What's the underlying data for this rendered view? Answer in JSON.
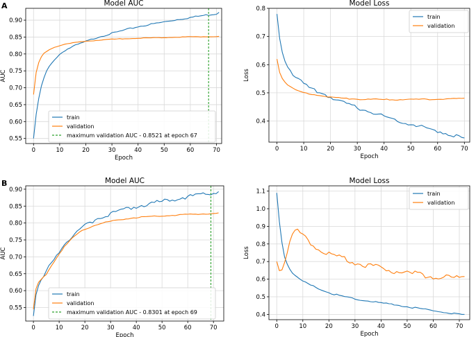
{
  "panel_labels": [
    "A",
    "B"
  ],
  "chart_data": [
    {
      "id": "A-auc",
      "type": "line",
      "title": "Model AUC",
      "xlabel": "Epoch",
      "ylabel": "AUC",
      "xlim": [
        -3,
        72
      ],
      "ylim": [
        0.535,
        0.935
      ],
      "xticks": [
        0,
        10,
        20,
        30,
        40,
        50,
        60,
        70
      ],
      "yticks": [
        0.55,
        0.6,
        0.65,
        0.7,
        0.75,
        0.8,
        0.85,
        0.9
      ],
      "ytick_format": 2,
      "grid": true,
      "legend_position": "lower-center",
      "series": [
        {
          "name": "train",
          "color": "#1f77b4",
          "kind": "curve",
          "noise": 0.0012,
          "x": [
            0,
            1,
            2,
            3,
            4,
            5,
            6,
            8,
            10,
            12,
            15,
            18,
            20,
            25,
            30,
            35,
            40,
            45,
            50,
            55,
            60,
            65,
            70,
            71
          ],
          "y": [
            0.55,
            0.62,
            0.67,
            0.705,
            0.73,
            0.75,
            0.763,
            0.785,
            0.8,
            0.812,
            0.823,
            0.832,
            0.838,
            0.852,
            0.862,
            0.872,
            0.882,
            0.889,
            0.896,
            0.903,
            0.909,
            0.915,
            0.92,
            0.923
          ]
        },
        {
          "name": "validation",
          "color": "#ff7f0e",
          "kind": "curve",
          "noise": 0.0004,
          "x": [
            0,
            1,
            2,
            3,
            4,
            5,
            6,
            8,
            10,
            12,
            15,
            18,
            20,
            25,
            30,
            40,
            50,
            60,
            71
          ],
          "y": [
            0.68,
            0.745,
            0.775,
            0.792,
            0.802,
            0.808,
            0.813,
            0.82,
            0.825,
            0.829,
            0.833,
            0.836,
            0.838,
            0.841,
            0.844,
            0.847,
            0.849,
            0.851,
            0.852
          ]
        },
        {
          "name": "maximum validation AUC - 0.8521 at epoch 67",
          "color": "#2ca02c",
          "kind": "vline",
          "x": 67
        }
      ]
    },
    {
      "id": "A-loss",
      "type": "line",
      "title": "Model Loss",
      "xlabel": "Epoch",
      "ylabel": "Loss",
      "xlim": [
        -3,
        72
      ],
      "ylim": [
        0.325,
        0.8
      ],
      "xticks": [
        0,
        10,
        20,
        30,
        40,
        50,
        60,
        70
      ],
      "yticks": [
        0.4,
        0.5,
        0.6,
        0.7,
        0.8
      ],
      "ytick_format": 1,
      "grid": true,
      "legend_position": "top-right",
      "series": [
        {
          "name": "train",
          "color": "#1f77b4",
          "kind": "curve",
          "noise": 0.003,
          "x": [
            0,
            1,
            2,
            3,
            4,
            5,
            6,
            8,
            10,
            12,
            15,
            18,
            20,
            25,
            30,
            35,
            40,
            45,
            50,
            55,
            60,
            65,
            70
          ],
          "y": [
            0.78,
            0.7,
            0.65,
            0.62,
            0.6,
            0.585,
            0.57,
            0.55,
            0.535,
            0.52,
            0.507,
            0.497,
            0.487,
            0.467,
            0.45,
            0.435,
            0.42,
            0.405,
            0.392,
            0.38,
            0.367,
            0.355,
            0.34
          ]
        },
        {
          "name": "validation",
          "color": "#ff7f0e",
          "kind": "curve",
          "noise": 0.0012,
          "x": [
            0,
            1,
            2,
            3,
            4,
            5,
            6,
            8,
            10,
            15,
            20,
            25,
            30,
            35,
            40,
            45,
            50,
            55,
            60,
            65,
            70
          ],
          "y": [
            0.62,
            0.575,
            0.553,
            0.54,
            0.53,
            0.522,
            0.516,
            0.508,
            0.502,
            0.493,
            0.486,
            0.482,
            0.479,
            0.478,
            0.477,
            0.477,
            0.478,
            0.478,
            0.479,
            0.48,
            0.481
          ]
        }
      ]
    },
    {
      "id": "B-auc",
      "type": "line",
      "title": "Model AUC",
      "xlabel": "Epoch",
      "ylabel": "AUC",
      "xlim": [
        -3,
        74
      ],
      "ylim": [
        0.51,
        0.91
      ],
      "xticks": [
        0,
        10,
        20,
        30,
        40,
        50,
        60,
        70
      ],
      "yticks": [
        0.55,
        0.6,
        0.65,
        0.7,
        0.75,
        0.8,
        0.85,
        0.9
      ],
      "ytick_format": 2,
      "grid": true,
      "legend_position": "lower-center",
      "series": [
        {
          "name": "train",
          "color": "#1f77b4",
          "kind": "curve",
          "noise": 0.003,
          "x": [
            0,
            1,
            2,
            3,
            5,
            7,
            10,
            12,
            15,
            18,
            20,
            25,
            30,
            35,
            40,
            45,
            50,
            55,
            60,
            65,
            70,
            72
          ],
          "y": [
            0.525,
            0.585,
            0.615,
            0.63,
            0.66,
            0.685,
            0.72,
            0.74,
            0.762,
            0.782,
            0.795,
            0.817,
            0.831,
            0.842,
            0.852,
            0.86,
            0.867,
            0.874,
            0.881,
            0.886,
            0.891,
            0.893
          ]
        },
        {
          "name": "validation",
          "color": "#ff7f0e",
          "kind": "curve",
          "noise": 0.0008,
          "x": [
            0,
            1,
            2,
            3,
            5,
            7,
            10,
            12,
            15,
            18,
            20,
            25,
            30,
            35,
            40,
            50,
            60,
            70,
            72
          ],
          "y": [
            0.545,
            0.605,
            0.625,
            0.633,
            0.65,
            0.675,
            0.71,
            0.73,
            0.755,
            0.773,
            0.783,
            0.797,
            0.806,
            0.812,
            0.817,
            0.822,
            0.826,
            0.829,
            0.83
          ]
        },
        {
          "name": "maximum validation AUC - 0.8301 at epoch 69",
          "color": "#2ca02c",
          "kind": "vline",
          "x": 69
        }
      ]
    },
    {
      "id": "B-loss",
      "type": "line",
      "title": "Model Loss",
      "xlabel": "Epoch",
      "ylabel": "Loss",
      "xlim": [
        -3,
        74
      ],
      "ylim": [
        0.37,
        1.13
      ],
      "xticks": [
        0,
        10,
        20,
        30,
        40,
        50,
        60,
        70
      ],
      "yticks": [
        0.4,
        0.5,
        0.6,
        0.7,
        0.8,
        0.9,
        1.0,
        1.1
      ],
      "ytick_format": 1,
      "grid": true,
      "legend_position": "top-right",
      "series": [
        {
          "name": "train",
          "color": "#1f77b4",
          "kind": "curve",
          "noise": 0.002,
          "x": [
            0,
            1,
            2,
            3,
            4,
            5,
            6,
            8,
            10,
            12,
            15,
            18,
            20,
            25,
            30,
            35,
            40,
            45,
            50,
            55,
            60,
            65,
            70,
            72
          ],
          "y": [
            1.09,
            0.93,
            0.81,
            0.73,
            0.69,
            0.66,
            0.64,
            0.61,
            0.59,
            0.575,
            0.555,
            0.535,
            0.525,
            0.505,
            0.49,
            0.478,
            0.467,
            0.457,
            0.446,
            0.434,
            0.423,
            0.412,
            0.403,
            0.4
          ]
        },
        {
          "name": "validation",
          "color": "#ff7f0e",
          "kind": "curve",
          "noise": 0.009,
          "x": [
            0,
            1,
            2,
            3,
            4,
            5,
            6,
            7,
            8,
            9,
            10,
            12,
            15,
            18,
            20,
            25,
            30,
            35,
            40,
            45,
            50,
            55,
            60,
            65,
            70,
            72
          ],
          "y": [
            0.7,
            0.665,
            0.665,
            0.72,
            0.77,
            0.82,
            0.858,
            0.875,
            0.878,
            0.87,
            0.86,
            0.835,
            0.79,
            0.765,
            0.755,
            0.725,
            0.7,
            0.685,
            0.67,
            0.655,
            0.645,
            0.632,
            0.625,
            0.618,
            0.612,
            0.615
          ]
        }
      ]
    }
  ]
}
